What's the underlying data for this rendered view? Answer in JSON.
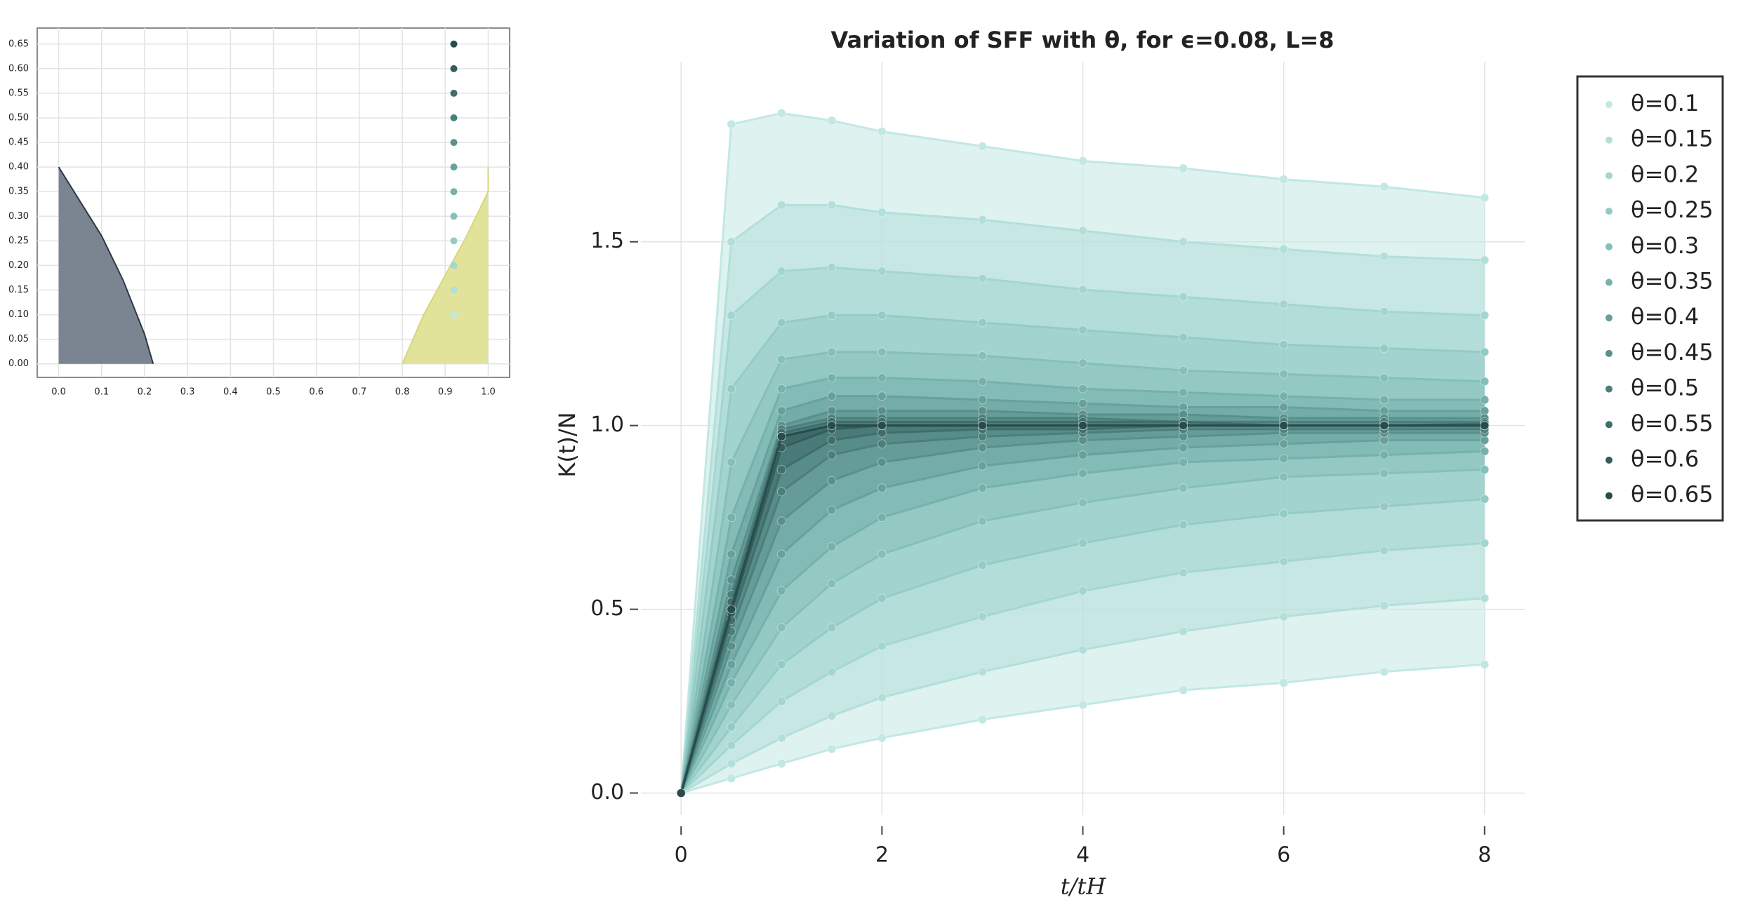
{
  "chart_data": [
    {
      "type": "area",
      "series": [
        {
          "type": "area",
          "color": "#7b8591",
          "stroke": "#2b3a45",
          "x": [
            0,
            0.05,
            0.1,
            0.15,
            0.2,
            0.22
          ],
          "values": [
            0.4,
            0.33,
            0.26,
            0.17,
            0.06,
            0
          ]
        },
        {
          "type": "area",
          "color": "#e2e39b",
          "stroke": "#d6d77a",
          "x": [
            0.8,
            0.85,
            0.9,
            0.95,
            1,
            1
          ],
          "values": [
            0,
            0.1,
            0.18,
            0.26,
            0.35,
            0.4
          ]
        },
        {
          "type": "scatter",
          "x": [
            0.92,
            0.92,
            0.92,
            0.92,
            0.92,
            0.92,
            0.92,
            0.92,
            0.92,
            0.92,
            0.92,
            0.92
          ],
          "values": [
            0.1,
            0.15,
            0.2,
            0.25,
            0.3,
            0.35,
            0.4,
            0.45,
            0.5,
            0.55,
            0.6,
            0.65
          ],
          "colors": [
            "#c2e8e4",
            "#b3dfda",
            "#a4d6d0",
            "#95cbc5",
            "#86bfb9",
            "#77b1ab",
            "#68a19c",
            "#5a908b",
            "#4c7f7b",
            "#3f6e6b",
            "#335d5b",
            "#284c4c"
          ]
        }
      ],
      "xlim": [
        -0.05,
        1.05
      ],
      "ylim": [
        -0.0275,
        0.6825
      ],
      "grid": true,
      "xticks": [
        {
          "value": 0,
          "label": "0.0"
        },
        {
          "value": 0.1,
          "label": "0.1"
        },
        {
          "value": 0.2,
          "label": "0.2"
        },
        {
          "value": 0.3,
          "label": "0.3"
        },
        {
          "value": 0.4,
          "label": "0.4"
        },
        {
          "value": 0.5,
          "label": "0.5"
        },
        {
          "value": 0.6,
          "label": "0.6"
        },
        {
          "value": 0.7,
          "label": "0.7"
        },
        {
          "value": 0.8,
          "label": "0.8"
        },
        {
          "value": 0.9,
          "label": "0.9"
        },
        {
          "value": 1,
          "label": "1.0"
        }
      ],
      "yticks": [
        {
          "value": 0,
          "label": "0.00"
        },
        {
          "value": 0.05,
          "label": "0.05"
        },
        {
          "value": 0.1,
          "label": "0.10"
        },
        {
          "value": 0.15,
          "label": "0.15"
        },
        {
          "value": 0.2,
          "label": "0.20"
        },
        {
          "value": 0.25,
          "label": "0.25"
        },
        {
          "value": 0.3,
          "label": "0.30"
        },
        {
          "value": 0.35,
          "label": "0.35"
        },
        {
          "value": 0.4,
          "label": "0.40"
        },
        {
          "value": 0.45,
          "label": "0.45"
        },
        {
          "value": 0.5,
          "label": "0.50"
        },
        {
          "value": 0.55,
          "label": "0.55"
        },
        {
          "value": 0.6,
          "label": "0.60"
        },
        {
          "value": 0.65,
          "label": "0.65"
        }
      ]
    },
    {
      "type": "line",
      "title": "Variation of SFF with θ, for ϵ=0.08, L=8",
      "x_label": "t/tH",
      "y_label": "K(t)/N",
      "x": [
        0,
        0.5,
        1,
        1.5,
        2,
        3,
        4,
        5,
        6,
        7,
        8
      ],
      "series": [
        {
          "name": "θ=0.1",
          "color": "#c2e8e4",
          "values": [
            0,
            1.82,
            1.85,
            1.83,
            1.8,
            1.76,
            1.72,
            1.7,
            1.67,
            1.65,
            1.62
          ],
          "lower": [
            0,
            0.04,
            0.08,
            0.12,
            0.15,
            0.2,
            0.24,
            0.28,
            0.3,
            0.33,
            0.35
          ]
        },
        {
          "name": "θ=0.15",
          "color": "#b3dfda",
          "values": [
            0,
            1.5,
            1.6,
            1.6,
            1.58,
            1.56,
            1.53,
            1.5,
            1.48,
            1.46,
            1.45
          ],
          "lower": [
            0,
            0.08,
            0.15,
            0.21,
            0.26,
            0.33,
            0.39,
            0.44,
            0.48,
            0.51,
            0.53
          ]
        },
        {
          "name": "θ=0.2",
          "color": "#a4d6d0",
          "values": [
            0,
            1.3,
            1.42,
            1.43,
            1.42,
            1.4,
            1.37,
            1.35,
            1.33,
            1.31,
            1.3
          ],
          "lower": [
            0,
            0.13,
            0.25,
            0.33,
            0.4,
            0.48,
            0.55,
            0.6,
            0.63,
            0.66,
            0.68
          ]
        },
        {
          "name": "θ=0.25",
          "color": "#95cbc5",
          "values": [
            0,
            1.1,
            1.28,
            1.3,
            1.3,
            1.28,
            1.26,
            1.24,
            1.22,
            1.21,
            1.2
          ],
          "lower": [
            0,
            0.18,
            0.35,
            0.45,
            0.53,
            0.62,
            0.68,
            0.73,
            0.76,
            0.78,
            0.8
          ]
        },
        {
          "name": "θ=0.3",
          "color": "#86bfb9",
          "values": [
            0,
            0.9,
            1.18,
            1.2,
            1.2,
            1.19,
            1.17,
            1.15,
            1.14,
            1.13,
            1.12
          ],
          "lower": [
            0,
            0.24,
            0.45,
            0.57,
            0.65,
            0.74,
            0.79,
            0.83,
            0.86,
            0.87,
            0.88
          ]
        },
        {
          "name": "θ=0.35",
          "color": "#77b1ab",
          "values": [
            0,
            0.75,
            1.1,
            1.13,
            1.13,
            1.12,
            1.1,
            1.09,
            1.08,
            1.07,
            1.07
          ],
          "lower": [
            0,
            0.3,
            0.55,
            0.67,
            0.75,
            0.83,
            0.87,
            0.9,
            0.91,
            0.92,
            0.93
          ]
        },
        {
          "name": "θ=0.4",
          "color": "#68a19c",
          "values": [
            0,
            0.65,
            1.04,
            1.08,
            1.08,
            1.07,
            1.06,
            1.05,
            1.05,
            1.04,
            1.04
          ],
          "lower": [
            0,
            0.35,
            0.65,
            0.77,
            0.83,
            0.89,
            0.92,
            0.94,
            0.95,
            0.96,
            0.96
          ]
        },
        {
          "name": "θ=0.45",
          "color": "#5a908b",
          "values": [
            0,
            0.58,
            1,
            1.04,
            1.04,
            1.04,
            1.03,
            1.03,
            1.02,
            1.02,
            1.02
          ],
          "lower": [
            0,
            0.4,
            0.74,
            0.85,
            0.9,
            0.94,
            0.96,
            0.97,
            0.98,
            0.98,
            0.98
          ]
        },
        {
          "name": "θ=0.5",
          "color": "#4c7f7b",
          "values": [
            0,
            0.54,
            0.99,
            1.02,
            1.02,
            1.02,
            1.02,
            1.01,
            1.01,
            1.01,
            1.01
          ],
          "lower": [
            0,
            0.44,
            0.82,
            0.92,
            0.95,
            0.97,
            0.98,
            0.99,
            0.99,
            0.99,
            0.99
          ]
        },
        {
          "name": "θ=0.55",
          "color": "#3f6e6b",
          "values": [
            0,
            0.52,
            0.98,
            1.01,
            1.01,
            1.01,
            1.01,
            1.01,
            1,
            1,
            1.005
          ],
          "lower": [
            0,
            0.47,
            0.88,
            0.96,
            0.98,
            0.99,
            0.99,
            1,
            1,
            1,
            1
          ]
        },
        {
          "name": "θ=0.6",
          "color": "#335d5b",
          "values": [
            0,
            0.5,
            0.97,
            1,
            1,
            1,
            1,
            1,
            1,
            1,
            1
          ],
          "lower": [
            0,
            0.49,
            0.94,
            0.99,
            1,
            1,
            1,
            1,
            1,
            1,
            1
          ]
        },
        {
          "name": "θ=0.65",
          "color": "#284c4c",
          "values": [
            0,
            0.5,
            0.97,
            1,
            1,
            1,
            1,
            1,
            1,
            1,
            1
          ],
          "lower": [
            0,
            0.5,
            0.97,
            1,
            1,
            1,
            1,
            1,
            1,
            1,
            1
          ]
        }
      ],
      "xlim": [
        -0.4,
        8.4
      ],
      "ylim": [
        -0.06,
        1.99
      ],
      "grid": true,
      "xticks": [
        0,
        2,
        4,
        6,
        8
      ],
      "yticks": [
        {
          "value": 0,
          "label": "0.0"
        },
        {
          "value": 0.5,
          "label": "0.5"
        },
        {
          "value": 1,
          "label": "1.0"
        },
        {
          "value": 1.5,
          "label": "1.5"
        }
      ],
      "legend": "outside-right"
    }
  ]
}
